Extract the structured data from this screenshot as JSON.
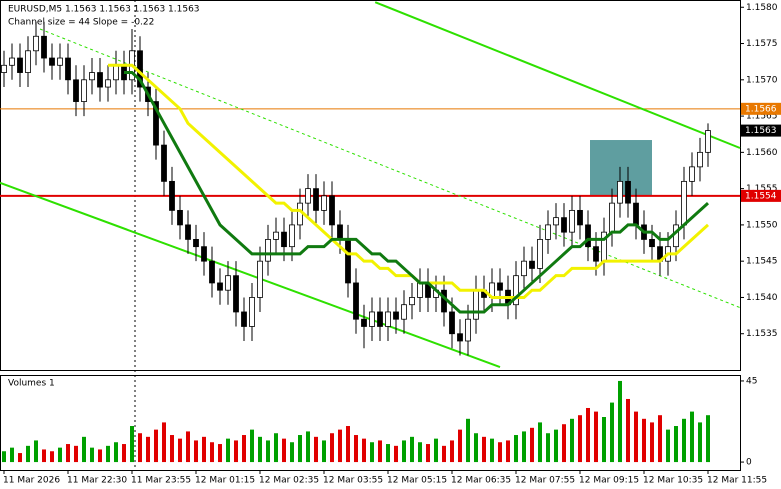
{
  "chart_data": {
    "type": "candlestick",
    "header": "EURUSD,M5  1.1563 1.1563 1.1563 1.1563",
    "subheader": "Channel size = 44 Slope = -0.22",
    "categories": [
      "11 Mar 2026",
      null,
      null,
      null,
      null,
      null,
      null,
      null,
      "11 Mar 22:30",
      null,
      null,
      null,
      null,
      null,
      null,
      null,
      "11 Mar 23:55",
      null,
      null,
      null,
      null,
      null,
      null,
      null,
      "12 Mar 01:15",
      null,
      null,
      null,
      null,
      null,
      null,
      null,
      "12 Mar 02:35",
      null,
      null,
      null,
      null,
      null,
      null,
      null,
      "12 Mar 03:55",
      null,
      null,
      null,
      null,
      null,
      null,
      null,
      "12 Mar 05:15",
      null,
      null,
      null,
      null,
      null,
      null,
      null,
      "12 Mar 06:35",
      null,
      null,
      null,
      null,
      null,
      null,
      null,
      "12 Mar 07:55",
      null,
      null,
      null,
      null,
      null,
      null,
      null,
      "12 Mar 09:15",
      null,
      null,
      null,
      null,
      null,
      null,
      null,
      "12 Mar 10:35",
      null,
      null,
      null,
      null,
      null,
      null,
      null,
      "12 Mar 11:55"
    ],
    "open": [
      1.1571,
      1.1572,
      1.1573,
      1.1571,
      1.1574,
      1.1576,
      1.1573,
      1.1572,
      1.1573,
      1.157,
      1.1567,
      1.157,
      1.1571,
      1.1569,
      1.157,
      1.1572,
      1.157,
      1.1574,
      1.1569,
      1.1567,
      1.1561,
      1.1556,
      1.1552,
      1.155,
      1.1548,
      1.1547,
      1.1545,
      1.1542,
      1.1541,
      1.1543,
      1.1538,
      1.1536,
      1.154,
      1.1545,
      1.1548,
      1.1549,
      1.1547,
      1.155,
      1.1553,
      1.1555,
      1.1552,
      1.1554,
      1.155,
      1.1548,
      1.1542,
      1.1537,
      1.1536,
      1.1538,
      1.1536,
      1.1538,
      1.1537,
      1.1539,
      1.154,
      1.1542,
      1.154,
      1.1541,
      1.1538,
      1.1535,
      1.1534,
      1.1537,
      1.1541,
      1.154,
      1.1542,
      1.1541,
      1.1539,
      1.1543,
      1.1545,
      1.1544,
      1.1548,
      1.155,
      1.1551,
      1.1549,
      1.1552,
      1.155,
      1.1547,
      1.1545,
      1.1549,
      1.1553,
      1.1556,
      1.1553,
      1.155,
      1.1548,
      1.1547,
      1.1545,
      1.1547,
      1.155,
      1.1556,
      1.1558,
      1.156
    ],
    "high": [
      1.1574,
      1.1575,
      1.1575,
      1.1576,
      1.1578,
      1.1578,
      1.1575,
      1.1575,
      1.1575,
      1.1572,
      1.1572,
      1.1573,
      1.1573,
      1.1572,
      1.1574,
      1.1574,
      1.1577,
      1.1576,
      1.1571,
      1.1569,
      1.1563,
      1.1558,
      1.1554,
      1.1552,
      1.155,
      1.1549,
      1.1547,
      1.1544,
      1.1545,
      1.1545,
      1.154,
      1.1542,
      1.1547,
      1.155,
      1.1551,
      1.1551,
      1.1552,
      1.1555,
      1.1557,
      1.1557,
      1.1556,
      1.1556,
      1.1552,
      1.155,
      1.1544,
      1.1539,
      1.154,
      1.154,
      1.154,
      1.154,
      1.1541,
      1.1542,
      1.1544,
      1.1544,
      1.1543,
      1.1543,
      1.154,
      1.1537,
      1.1539,
      1.1543,
      1.1543,
      1.1544,
      1.1544,
      1.1543,
      1.1545,
      1.1547,
      1.1547,
      1.155,
      1.1552,
      1.1553,
      1.1553,
      1.1554,
      1.1554,
      1.1552,
      1.1549,
      1.1551,
      1.1555,
      1.1558,
      1.1558,
      1.1555,
      1.1552,
      1.155,
      1.1549,
      1.1549,
      1.1552,
      1.1558,
      1.156,
      1.1562,
      1.1564
    ],
    "low": [
      1.1569,
      1.157,
      1.1569,
      1.1569,
      1.1572,
      1.1571,
      1.157,
      1.157,
      1.1568,
      1.1565,
      1.1565,
      1.1568,
      1.1567,
      1.1567,
      1.1568,
      1.1568,
      1.1568,
      1.1567,
      1.1565,
      1.1559,
      1.1554,
      1.155,
      1.1548,
      1.1546,
      1.1545,
      1.1543,
      1.154,
      1.1539,
      1.1539,
      1.1536,
      1.1534,
      1.1534,
      1.1538,
      1.1543,
      1.1546,
      1.1545,
      1.1545,
      1.1548,
      1.1551,
      1.155,
      1.155,
      1.1548,
      1.1546,
      1.154,
      1.1535,
      1.1533,
      1.1534,
      1.1534,
      1.1534,
      1.1535,
      1.1535,
      1.1537,
      1.1538,
      1.1538,
      1.1538,
      1.1536,
      1.1533,
      1.1532,
      1.1532,
      1.1535,
      1.1538,
      1.1538,
      1.1539,
      1.1537,
      1.1537,
      1.1541,
      1.1542,
      1.1542,
      1.1546,
      1.1548,
      1.1547,
      1.1547,
      1.1548,
      1.1545,
      1.1543,
      1.1543,
      1.1547,
      1.1551,
      1.1551,
      1.1548,
      1.1546,
      1.1545,
      1.1543,
      1.1543,
      1.1545,
      1.1548,
      1.1554,
      1.1556,
      1.1558
    ],
    "close": [
      1.1572,
      1.1573,
      1.1571,
      1.1574,
      1.1576,
      1.1573,
      1.1572,
      1.1573,
      1.157,
      1.1567,
      1.157,
      1.1571,
      1.1569,
      1.157,
      1.1572,
      1.157,
      1.1574,
      1.1569,
      1.1567,
      1.1561,
      1.1556,
      1.1552,
      1.155,
      1.1548,
      1.1547,
      1.1545,
      1.1542,
      1.1541,
      1.1543,
      1.1538,
      1.1536,
      1.154,
      1.1545,
      1.1548,
      1.1549,
      1.1547,
      1.155,
      1.1553,
      1.1555,
      1.1552,
      1.1554,
      1.155,
      1.1548,
      1.1542,
      1.1537,
      1.1536,
      1.1538,
      1.1536,
      1.1538,
      1.1537,
      1.1539,
      1.154,
      1.1542,
      1.154,
      1.1541,
      1.1538,
      1.1535,
      1.1534,
      1.1537,
      1.1541,
      1.154,
      1.1542,
      1.1541,
      1.1539,
      1.1543,
      1.1545,
      1.1544,
      1.1548,
      1.155,
      1.1551,
      1.1549,
      1.1552,
      1.155,
      1.1547,
      1.1545,
      1.1549,
      1.1553,
      1.1556,
      1.1553,
      1.155,
      1.1548,
      1.1547,
      1.1545,
      1.1547,
      1.155,
      1.1556,
      1.1558,
      1.156,
      1.1563
    ],
    "series": [
      {
        "color": "#f2f200",
        "values": [
          null,
          null,
          null,
          null,
          null,
          null,
          null,
          null,
          null,
          null,
          null,
          null,
          null,
          1.1572,
          1.1572,
          1.1572,
          1.1572,
          1.1571,
          1.157,
          1.1569,
          1.1568,
          1.1567,
          1.1566,
          1.1564,
          1.1563,
          1.1562,
          1.1561,
          1.156,
          1.1559,
          1.1558,
          1.1557,
          1.1556,
          1.1555,
          1.1554,
          1.1553,
          1.1553,
          1.1552,
          1.1552,
          1.1551,
          1.155,
          1.1549,
          1.1548,
          1.1547,
          1.1546,
          1.1546,
          1.1545,
          1.1545,
          1.1544,
          1.1544,
          1.1543,
          1.1543,
          1.1543,
          1.1542,
          1.1542,
          1.1542,
          1.1542,
          1.1542,
          1.1541,
          1.1541,
          1.1541,
          1.1541,
          1.154,
          1.154,
          1.154,
          1.154,
          1.154,
          1.1541,
          1.1541,
          1.1542,
          1.1543,
          1.1543,
          1.1544,
          1.1544,
          1.1544,
          1.1544,
          1.1545,
          1.1545,
          1.1545,
          1.1545,
          1.1545,
          1.1545,
          1.1545,
          1.1545,
          1.1546,
          1.1546,
          1.1547,
          1.1548,
          1.1549,
          1.155
        ]
      },
      {
        "color": "#107a10",
        "values": [
          null,
          null,
          null,
          null,
          null,
          null,
          null,
          null,
          null,
          null,
          null,
          null,
          null,
          null,
          null,
          1.1571,
          1.1571,
          1.157,
          1.1568,
          1.1566,
          1.1564,
          1.1562,
          1.156,
          1.1558,
          1.1556,
          1.1554,
          1.1552,
          1.155,
          1.1549,
          1.1548,
          1.1547,
          1.1546,
          1.1546,
          1.1546,
          1.1546,
          1.1546,
          1.1546,
          1.1546,
          1.1547,
          1.1547,
          1.1547,
          1.1548,
          1.1548,
          1.1548,
          1.1548,
          1.1547,
          1.1546,
          1.1546,
          1.1545,
          1.1545,
          1.1544,
          1.1543,
          1.1542,
          1.1542,
          1.1541,
          1.154,
          1.1539,
          1.1538,
          1.1538,
          1.1538,
          1.1538,
          1.1539,
          1.1539,
          1.1539,
          1.154,
          1.1541,
          1.1542,
          1.1543,
          1.1544,
          1.1545,
          1.1546,
          1.1547,
          1.1547,
          1.1548,
          1.1548,
          1.1548,
          1.1549,
          1.1549,
          1.155,
          1.155,
          1.1549,
          1.1549,
          1.1548,
          1.1548,
          1.1549,
          1.155,
          1.1551,
          1.1552,
          1.1553
        ]
      }
    ],
    "ylim": [
      1.153,
      1.1581
    ],
    "yticks": [
      {
        "value": 1.158,
        "label": "1.1580"
      },
      1.1575,
      {
        "value": 1.157,
        "label": "1.1570"
      },
      1.1565,
      {
        "value": 1.156,
        "label": "1.1560"
      },
      1.1555,
      {
        "value": 1.155,
        "label": "1.1550"
      },
      1.1545,
      {
        "value": 1.154,
        "label": "1.1540"
      },
      1.1535
    ],
    "hlines": [
      {
        "value": 1.1566,
        "color": "#e87800"
      },
      {
        "value": 1.1554,
        "color": "#e00000"
      }
    ],
    "last_price": 1.1563,
    "trend_lines": [
      {
        "x": [
          46.4,
          92
        ],
        "y": [
          1.15807,
          1.15606
        ],
        "color": "#2ee000",
        "dashed": false
      },
      {
        "x": [
          -0.5,
          62
        ],
        "y": [
          1.15558,
          1.15304
        ],
        "color": "#2ee000",
        "dashed": false
      },
      {
        "x": [
          4.5,
          92
        ],
        "y": [
          1.1577,
          1.15386
        ],
        "color": "#2ee000",
        "dashed": true
      }
    ],
    "zone": {
      "x": [
        73.25,
        81
      ],
      "y": [
        1.1554,
        1.15617
      ],
      "color": "#5f9ea0"
    },
    "volume": {
      "title": "Volumes 1",
      "values": [
        6,
        8,
        5,
        9,
        12,
        7,
        6,
        8,
        10,
        9,
        14,
        8,
        7,
        9,
        11,
        10,
        20,
        16,
        14,
        18,
        22,
        15,
        13,
        17,
        12,
        14,
        11,
        10,
        13,
        12,
        15,
        18,
        14,
        12,
        16,
        13,
        11,
        15,
        17,
        14,
        12,
        16,
        18,
        20,
        15,
        13,
        11,
        12,
        10,
        9,
        12,
        14,
        11,
        10,
        13,
        9,
        12,
        18,
        24,
        16,
        14,
        13,
        11,
        12,
        15,
        17,
        19,
        22,
        16,
        18,
        21,
        24,
        26,
        30,
        28,
        25,
        33,
        45,
        35,
        28,
        24,
        22,
        26,
        18,
        20,
        24,
        28,
        22,
        26
      ],
      "ylim": [
        -4.4,
        48.3
      ],
      "yticks": [
        0,
        45
      ]
    }
  }
}
